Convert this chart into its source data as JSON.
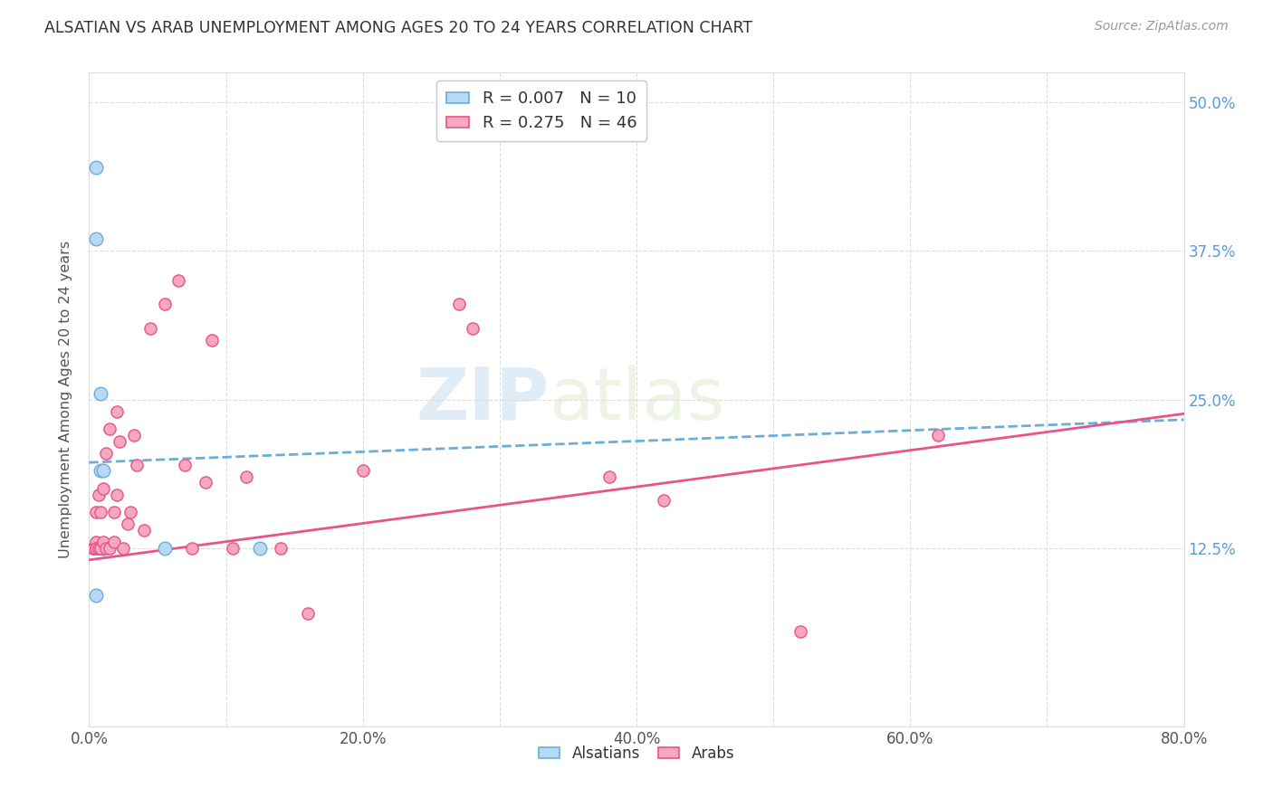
{
  "title": "ALSATIAN VS ARAB UNEMPLOYMENT AMONG AGES 20 TO 24 YEARS CORRELATION CHART",
  "source": "Source: ZipAtlas.com",
  "ylabel": "Unemployment Among Ages 20 to 24 years",
  "xlim": [
    0.0,
    0.8
  ],
  "ylim": [
    -0.025,
    0.525
  ],
  "xtick_labels": [
    "0.0%",
    "",
    "20.0%",
    "",
    "40.0%",
    "",
    "60.0%",
    "",
    "80.0%"
  ],
  "xtick_vals": [
    0.0,
    0.1,
    0.2,
    0.3,
    0.4,
    0.5,
    0.6,
    0.7,
    0.8
  ],
  "ytick_labels": [
    "12.5%",
    "25.0%",
    "37.5%",
    "50.0%"
  ],
  "ytick_vals": [
    0.125,
    0.25,
    0.375,
    0.5
  ],
  "alsatian_R": 0.007,
  "alsatian_N": 10,
  "arab_R": 0.275,
  "arab_N": 46,
  "alsatian_color": "#b8d9f5",
  "arab_color": "#f5a8bf",
  "alsatian_edge_color": "#6aaed6",
  "arab_edge_color": "#e8538a",
  "alsatian_line_color": "#6aaed6",
  "arab_line_color": "#e8538a",
  "alsatian_line_x": [
    0.0,
    0.8
  ],
  "alsatian_line_y": [
    0.197,
    0.233
  ],
  "arab_line_x": [
    0.0,
    0.8
  ],
  "arab_line_y": [
    0.115,
    0.238
  ],
  "alsatian_x": [
    0.005,
    0.005,
    0.008,
    0.008,
    0.01,
    0.01,
    0.01,
    0.055,
    0.125,
    0.005
  ],
  "alsatian_y": [
    0.445,
    0.385,
    0.255,
    0.19,
    0.19,
    0.125,
    0.125,
    0.125,
    0.125,
    0.085
  ],
  "arab_x": [
    0.003,
    0.003,
    0.003,
    0.005,
    0.005,
    0.005,
    0.005,
    0.007,
    0.007,
    0.008,
    0.008,
    0.01,
    0.01,
    0.012,
    0.012,
    0.015,
    0.015,
    0.018,
    0.018,
    0.02,
    0.02,
    0.022,
    0.025,
    0.028,
    0.03,
    0.033,
    0.035,
    0.04,
    0.045,
    0.055,
    0.065,
    0.07,
    0.075,
    0.085,
    0.09,
    0.105,
    0.115,
    0.14,
    0.16,
    0.2,
    0.27,
    0.28,
    0.38,
    0.42,
    0.52,
    0.62
  ],
  "arab_y": [
    0.125,
    0.125,
    0.125,
    0.13,
    0.125,
    0.125,
    0.155,
    0.125,
    0.17,
    0.125,
    0.155,
    0.13,
    0.175,
    0.125,
    0.205,
    0.125,
    0.225,
    0.155,
    0.13,
    0.17,
    0.24,
    0.215,
    0.125,
    0.145,
    0.155,
    0.22,
    0.195,
    0.14,
    0.31,
    0.33,
    0.35,
    0.195,
    0.125,
    0.18,
    0.3,
    0.125,
    0.185,
    0.125,
    0.07,
    0.19,
    0.33,
    0.31,
    0.185,
    0.165,
    0.055,
    0.22
  ],
  "watermark_text": "ZIPatlas",
  "watermark_color": "#cce5f5",
  "background_color": "#ffffff",
  "grid_color": "#dddddd",
  "title_color": "#333333",
  "source_color": "#999999",
  "tick_label_color_right": "#5b9bd5",
  "legend_edge_color": "#cccccc"
}
